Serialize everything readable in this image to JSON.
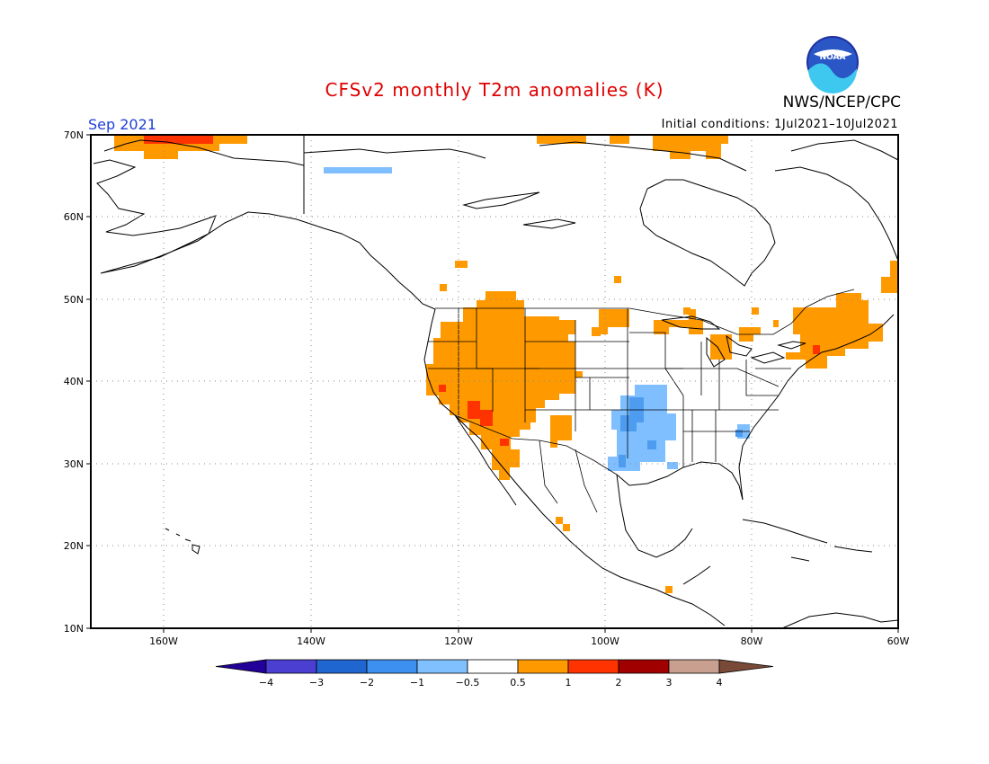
{
  "header": {
    "title": "CFSv2 monthly T2m anomalies (K)",
    "month": "Sep 2021",
    "initial_conditions": "Initial conditions: 1Jul2021–10Jul2021",
    "agency": "NWS/NCEP/CPC",
    "logo_text": "NOAA"
  },
  "map": {
    "lat_labels": [
      "70N",
      "60N",
      "50N",
      "40N",
      "30N",
      "20N",
      "10N"
    ],
    "lon_labels": [
      "160W",
      "140W",
      "120W",
      "100W",
      "80W",
      "60W"
    ],
    "colors": {
      "warm_05_1": "#ff9900",
      "warm_1_2": "#ff3300",
      "cool_05_1": "#7fbfff",
      "cool_1_2": "#4d9cf0"
    }
  },
  "colorbar": {
    "labels": [
      "−4",
      "−3",
      "−2",
      "−1",
      "−0.5",
      "0.5",
      "1",
      "2",
      "3",
      "4"
    ],
    "colors": [
      "#220099",
      "#4a3fd0",
      "#1f66d0",
      "#3d8ff0",
      "#80c0ff",
      "#ffffff",
      "#ff9900",
      "#ff3300",
      "#a00000",
      "#c9a090",
      "#7a4a38"
    ]
  }
}
